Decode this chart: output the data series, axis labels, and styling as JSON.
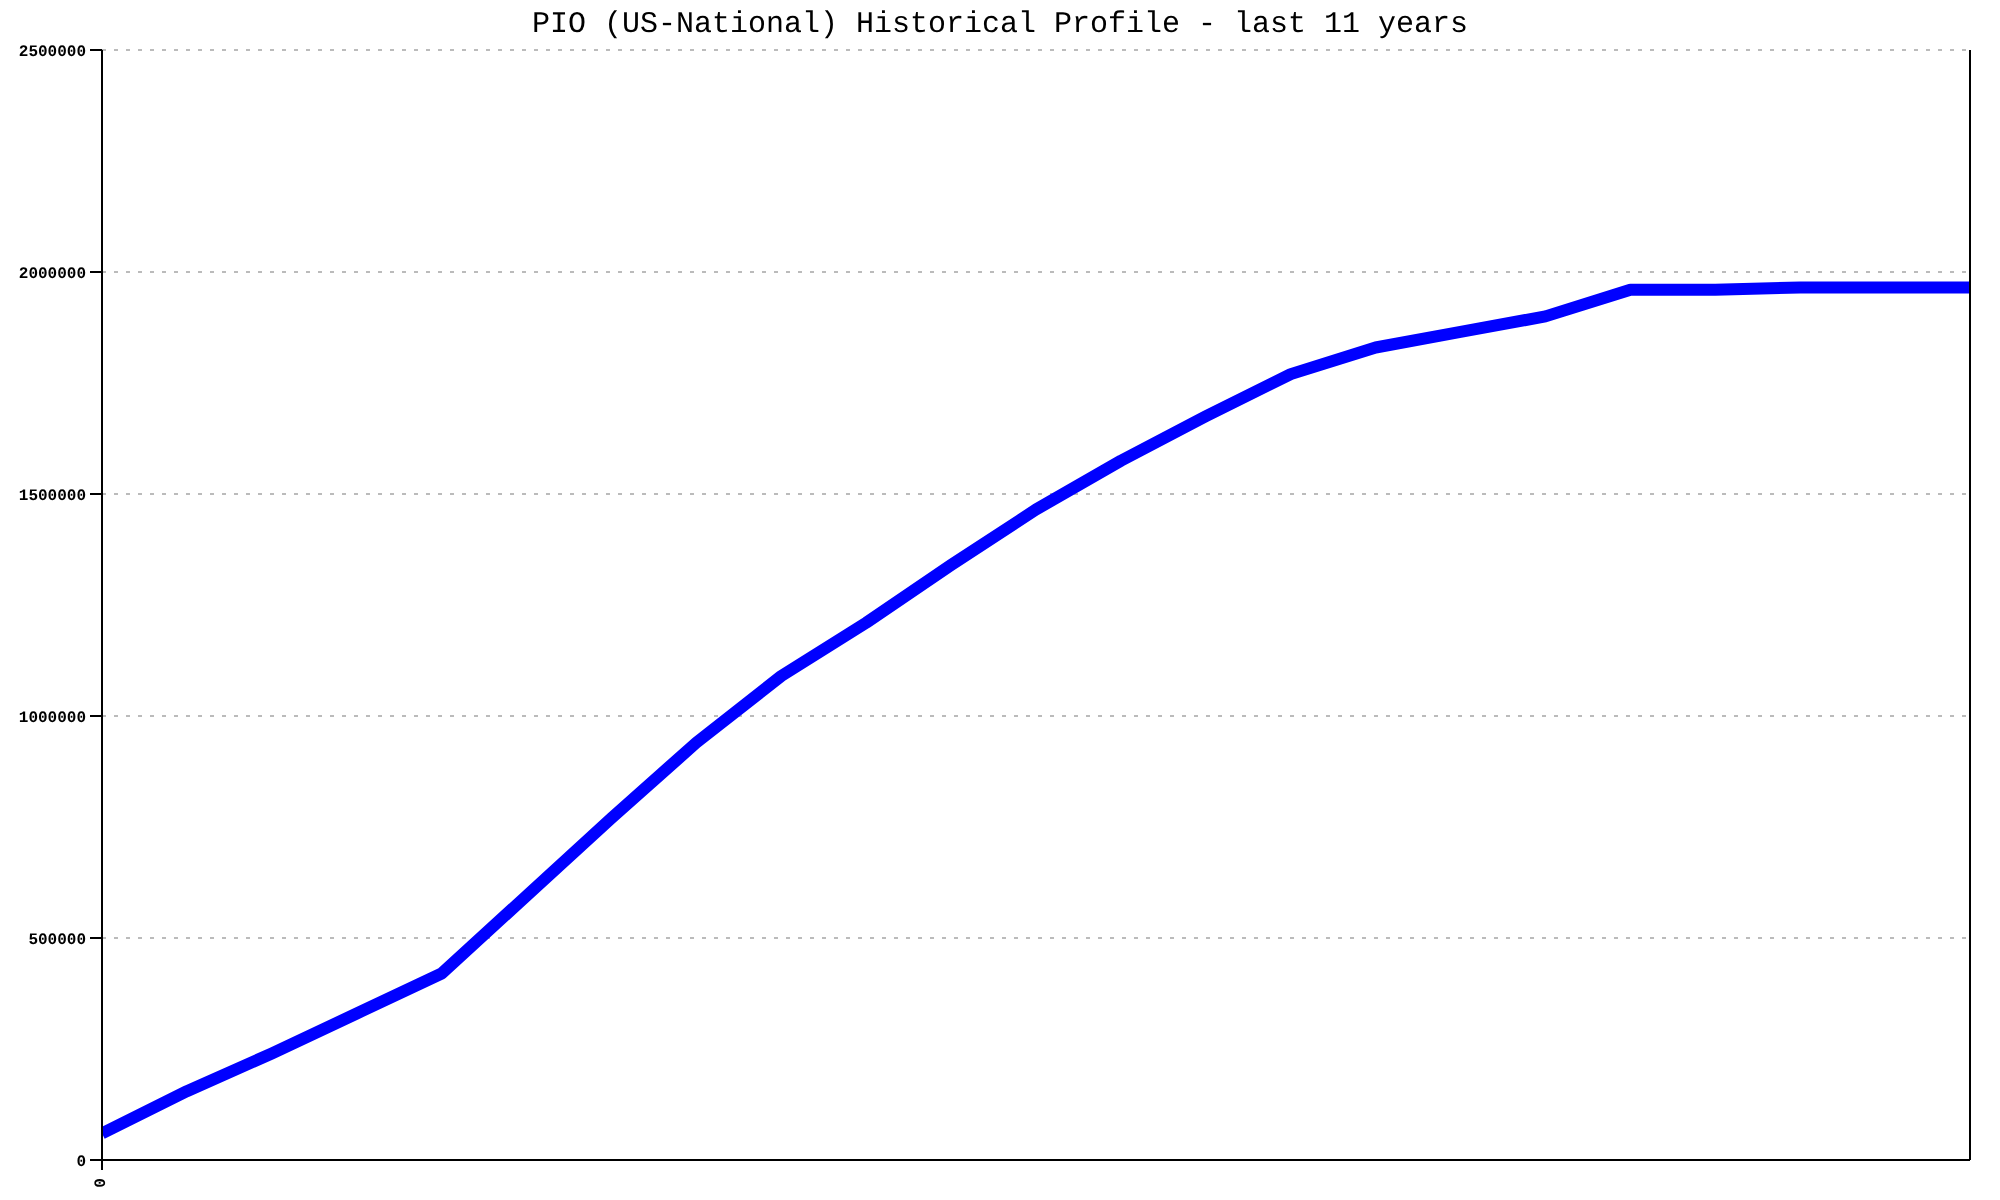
{
  "chart_data": {
    "type": "line",
    "title": "PIO (US-National) Historical Profile - last 11 years",
    "categories": [
      "0",
      null,
      null,
      null,
      null,
      null,
      null,
      null,
      null,
      null,
      null,
      null,
      null,
      null,
      null,
      null,
      null,
      null,
      null,
      null,
      null,
      null,
      null
    ],
    "values": [
      60000,
      155000,
      240000,
      330000,
      420000,
      595000,
      770000,
      940000,
      1090000,
      1210000,
      1340000,
      1465000,
      1575000,
      1675000,
      1770000,
      1830000,
      1865000,
      1900000,
      1960000,
      1960000,
      1965000,
      1965000,
      1965000
    ],
    "color": "#0000ff",
    "line_style": "solid",
    "ylim": [
      0,
      2500000
    ],
    "yticks": [
      0,
      500000,
      1000000,
      1500000,
      2000000,
      2500000
    ],
    "grid": "y"
  }
}
